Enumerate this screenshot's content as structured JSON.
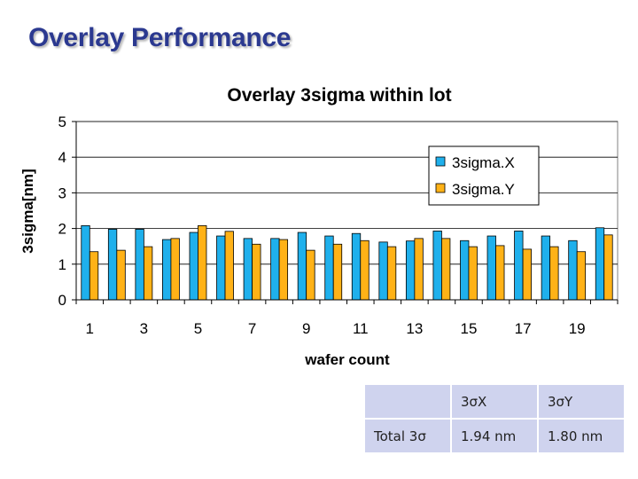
{
  "slide": {
    "title": "Overlay Performance"
  },
  "chart_data": {
    "type": "bar",
    "title": "Overlay 3sigma within lot",
    "xlabel": "wafer count",
    "ylabel": "3sigma[nm]",
    "ylim": [
      0,
      5
    ],
    "yticks": [
      "0",
      "1",
      "2",
      "3",
      "4",
      "5"
    ],
    "xtick_labels": [
      "1",
      "3",
      "5",
      "7",
      "9",
      "11",
      "13",
      "15",
      "17",
      "19"
    ],
    "categories": [
      1,
      2,
      3,
      4,
      5,
      6,
      7,
      8,
      9,
      10,
      11,
      12,
      13,
      14,
      15,
      16,
      17,
      18,
      19,
      20
    ],
    "series": [
      {
        "name": "3sigma.X",
        "color": "#1fb0ec",
        "values": [
          2.08,
          1.98,
          1.98,
          1.69,
          1.89,
          1.79,
          1.72,
          1.72,
          1.89,
          1.79,
          1.86,
          1.62,
          1.65,
          1.93,
          1.66,
          1.79,
          1.93,
          1.79,
          1.66,
          2.02
        ]
      },
      {
        "name": "3sigma.Y",
        "color": "#ffb217",
        "values": [
          1.35,
          1.39,
          1.49,
          1.72,
          2.08,
          1.92,
          1.56,
          1.69,
          1.39,
          1.56,
          1.66,
          1.49,
          1.72,
          1.72,
          1.49,
          1.52,
          1.42,
          1.49,
          1.35,
          1.82
        ]
      }
    ],
    "grid": true,
    "legend": "top-right"
  },
  "summary_table": {
    "header": [
      "",
      "3σX",
      "3σY"
    ],
    "rows": [
      [
        "Total 3σ",
        "1.94 nm",
        "1.80 nm"
      ]
    ]
  }
}
